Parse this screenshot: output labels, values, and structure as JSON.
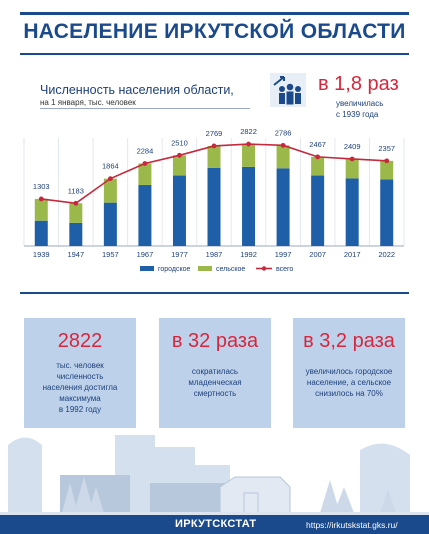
{
  "page_title": "НАСЕЛЕНИЕ ИРКУТСКОЙ ОБЛАСТИ",
  "chart_heading": {
    "title": "Численность населения области,",
    "subtitle": "на 1 января,  тыс. человек"
  },
  "headline": {
    "value": "в 1,8 раз",
    "caption_line1": "увеличилась",
    "caption_line2": "с 1939 года"
  },
  "chart_data": {
    "type": "bar",
    "stacked": true,
    "categories": [
      "1939",
      "1947",
      "1957",
      "1967",
      "1977",
      "1987",
      "1992",
      "1997",
      "2007",
      "2017",
      "2022"
    ],
    "series": [
      {
        "name": "городское",
        "color": "#1f5fa8",
        "values": [
          700,
          640,
          1200,
          1690,
          1950,
          2160,
          2190,
          2150,
          1950,
          1870,
          1840
        ]
      },
      {
        "name": "сельское",
        "color": "#9bb94a",
        "values": [
          603,
          543,
          664,
          594,
          560,
          609,
          632,
          636,
          517,
          539,
          517
        ]
      },
      {
        "name": "всего",
        "type": "line",
        "color": "#c8283c",
        "values": [
          1303,
          1183,
          1864,
          2284,
          2510,
          2769,
          2822,
          2786,
          2467,
          2409,
          2357
        ]
      }
    ],
    "data_labels": [
      "1303",
      "1183",
      "1864",
      "2284",
      "2510",
      "2769",
      "2822",
      "2786",
      "2467",
      "2409",
      "2357"
    ],
    "ylim": [
      0,
      3100
    ],
    "legend_position": "bottom"
  },
  "cards": [
    {
      "value": "2822",
      "text": [
        "тыс. человек",
        "численность",
        "населения достигла",
        "максимума",
        "в 1992 году"
      ]
    },
    {
      "value": "в 32 раза",
      "text": [
        "сократилась",
        "младенческая",
        "смертность"
      ]
    },
    {
      "value": "в 3,2 раза",
      "text": [
        "увеличилось городское",
        "население, а сельское",
        "снизилось на 70%"
      ]
    }
  ],
  "footer": {
    "brand": "ИРКУТСКСТАТ",
    "url": "https://irkutskstat.gks.ru/"
  },
  "colors": {
    "brand_blue": "#1b4a8c",
    "accent_red": "#d7263d",
    "card_bg": "#bdd2ea"
  },
  "icons": [
    "people-growth-icon",
    "city-skyline-illustration"
  ]
}
